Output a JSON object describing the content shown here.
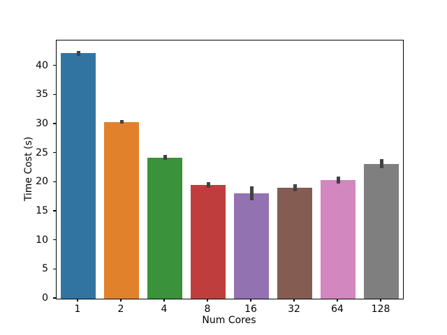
{
  "chart_data": {
    "type": "bar",
    "title": "",
    "xlabel": "Num Cores",
    "ylabel": "Time Cost (s)",
    "categories": [
      "1",
      "2",
      "4",
      "8",
      "16",
      "32",
      "64",
      "128"
    ],
    "values": [
      42.2,
      30.4,
      24.3,
      19.6,
      18.1,
      19.1,
      20.4,
      23.2
    ],
    "errors": [
      0.4,
      0.3,
      0.4,
      0.5,
      1.2,
      0.6,
      0.6,
      0.8
    ],
    "bar_colors": [
      "#3274a1",
      "#e1812c",
      "#3a923a",
      "#c03d3e",
      "#9372b2",
      "#845c52",
      "#d287be",
      "#7f7f7f"
    ],
    "error_bar_color": "#424242",
    "yticks": [
      0,
      5,
      10,
      15,
      20,
      25,
      30,
      35,
      40
    ],
    "ylim": [
      0,
      44.4
    ],
    "grid": false,
    "legend": null,
    "background_color": "#ffffff",
    "spine_color": "#000000"
  }
}
